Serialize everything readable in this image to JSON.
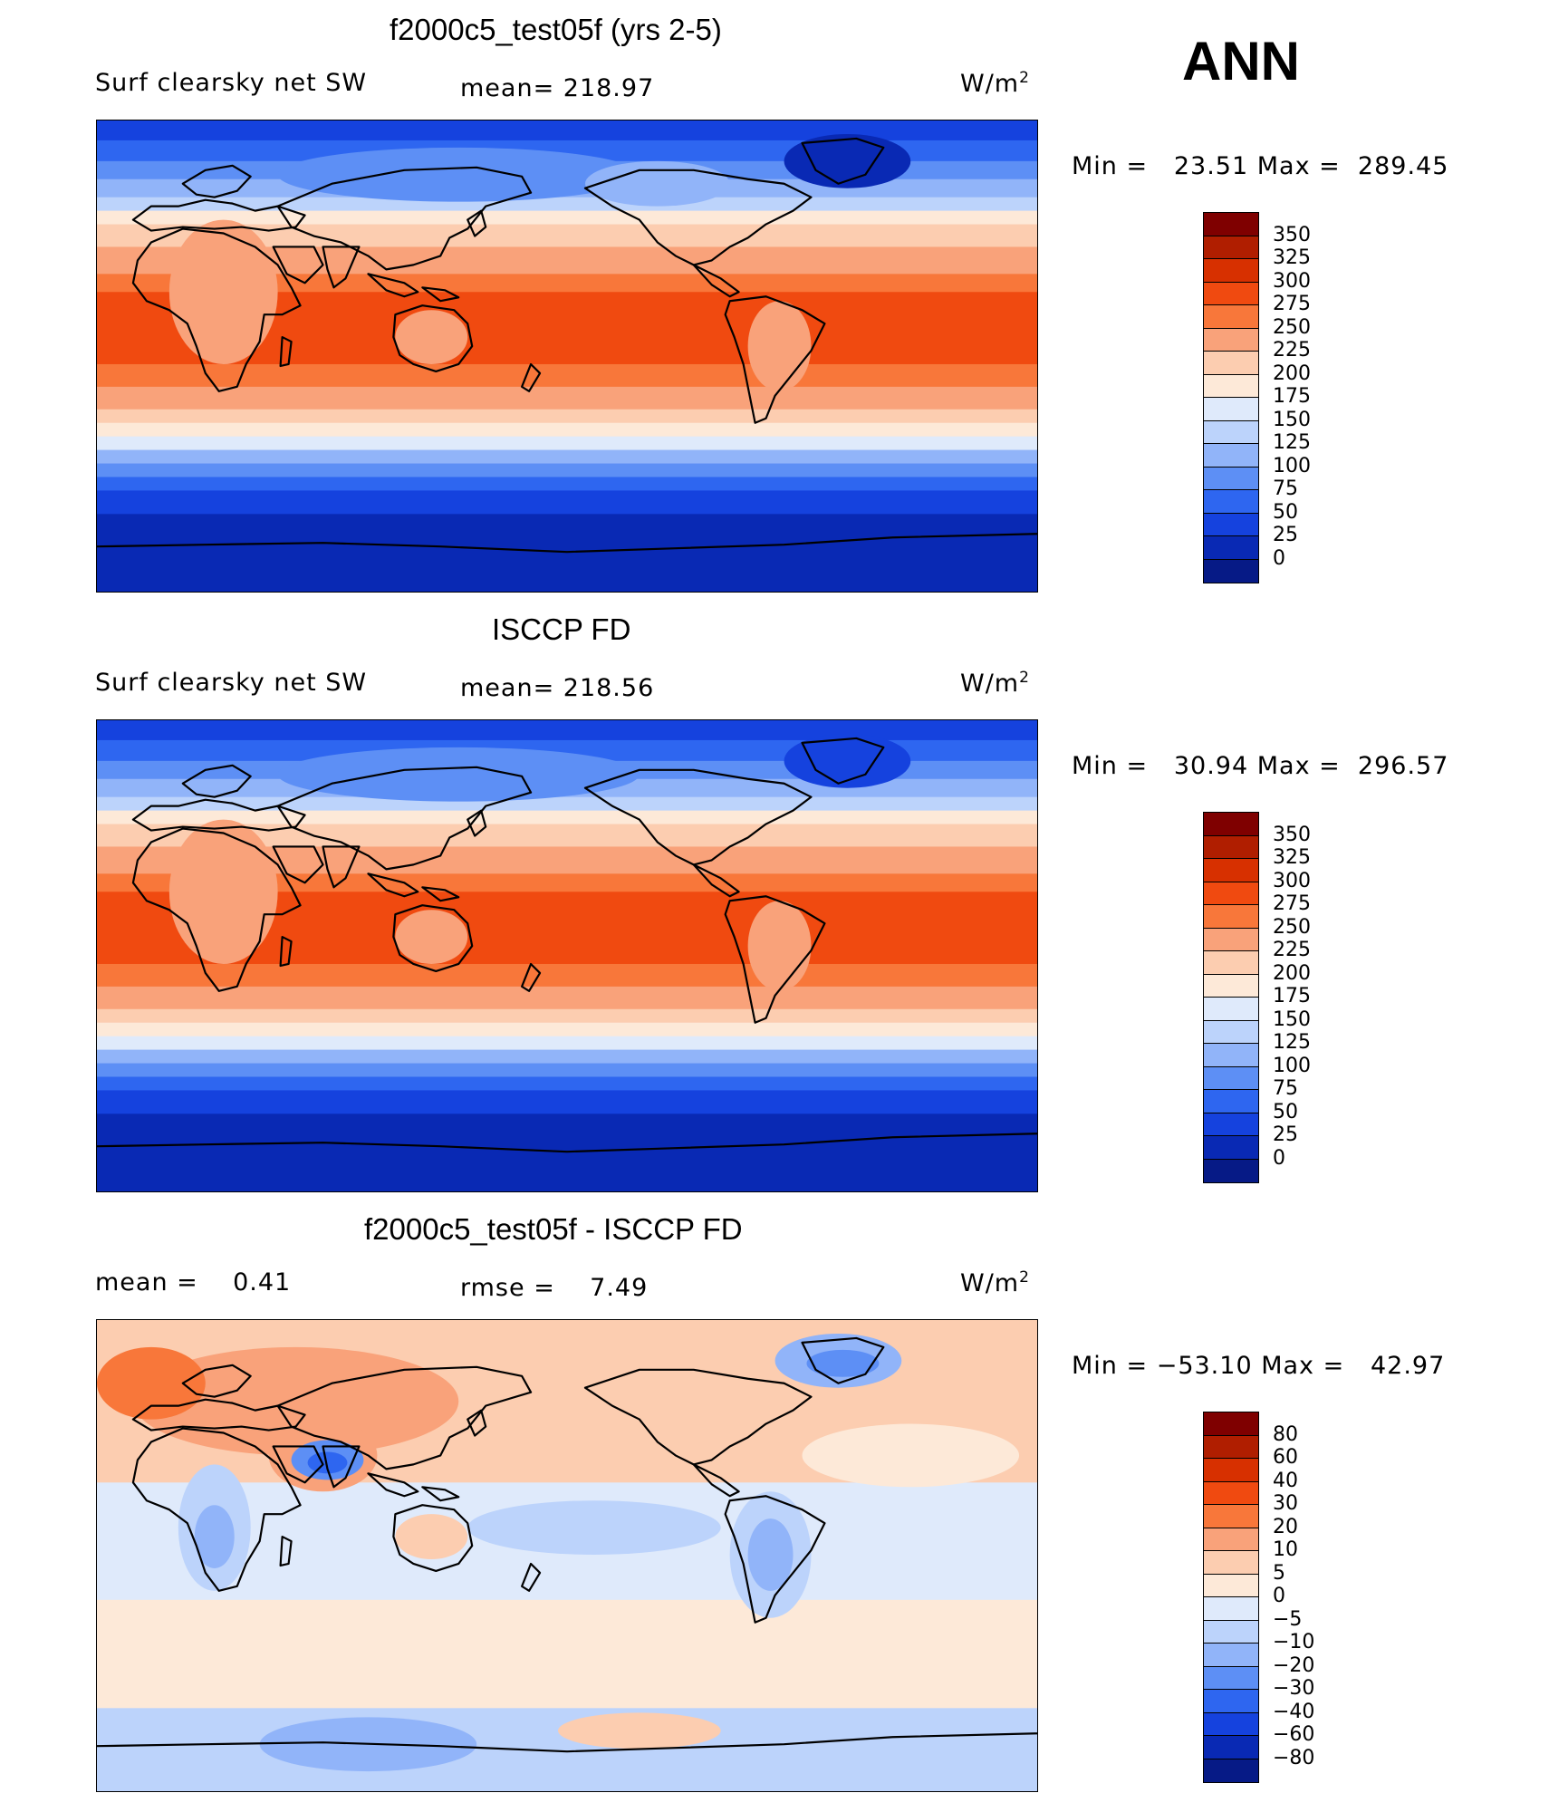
{
  "header": {
    "season": "ANN"
  },
  "panels": [
    {
      "title": "f2000c5_test05f (yrs 2-5)",
      "left_label": "Surf clearsky net SW",
      "center_label": "mean= 218.97",
      "units": "W/m",
      "units_exp": "2",
      "minmax": "Min =   23.51 Max =  289.45",
      "colorbar": {
        "labels": [
          "350",
          "325",
          "300",
          "275",
          "250",
          "225",
          "200",
          "175",
          "150",
          "125",
          "100",
          "75",
          "50",
          "25",
          "0"
        ],
        "colors": [
          "#7f0000",
          "#b01e00",
          "#d73000",
          "#f04a10",
          "#f8773a",
          "#f9a27a",
          "#fccdb0",
          "#fde9d8",
          "#dfeafb",
          "#bcd3fb",
          "#91b4f9",
          "#5d8ff5",
          "#2e66f0",
          "#1542de",
          "#0929b4",
          "#061a86"
        ]
      }
    },
    {
      "title": "ISCCP FD",
      "left_label": "Surf clearsky net SW",
      "center_label": "mean= 218.56",
      "units": "W/m",
      "units_exp": "2",
      "minmax": "Min =   30.94 Max =  296.57",
      "colorbar": {
        "labels": [
          "350",
          "325",
          "300",
          "275",
          "250",
          "225",
          "200",
          "175",
          "150",
          "125",
          "100",
          "75",
          "50",
          "25",
          "0"
        ],
        "colors": [
          "#7f0000",
          "#b01e00",
          "#d73000",
          "#f04a10",
          "#f8773a",
          "#f9a27a",
          "#fccdb0",
          "#fde9d8",
          "#dfeafb",
          "#bcd3fb",
          "#91b4f9",
          "#5d8ff5",
          "#2e66f0",
          "#1542de",
          "#0929b4",
          "#061a86"
        ]
      }
    },
    {
      "title": "f2000c5_test05f - ISCCP FD",
      "left_label": "mean =    0.41",
      "center_label": "rmse =    7.49",
      "units": "W/m",
      "units_exp": "2",
      "minmax": "Min = −53.10 Max =   42.97",
      "colorbar": {
        "labels": [
          "80",
          "60",
          "40",
          "30",
          "20",
          "10",
          "5",
          "0",
          "−5",
          "−10",
          "−20",
          "−30",
          "−40",
          "−60",
          "−80"
        ],
        "colors": [
          "#7f0000",
          "#b01e00",
          "#d73000",
          "#f04a10",
          "#f8773a",
          "#f9a27a",
          "#fccdb0",
          "#fde9d8",
          "#dfeafb",
          "#bcd3fb",
          "#91b4f9",
          "#5d8ff5",
          "#2e66f0",
          "#1542de",
          "#0929b4",
          "#061a86"
        ]
      }
    }
  ]
}
